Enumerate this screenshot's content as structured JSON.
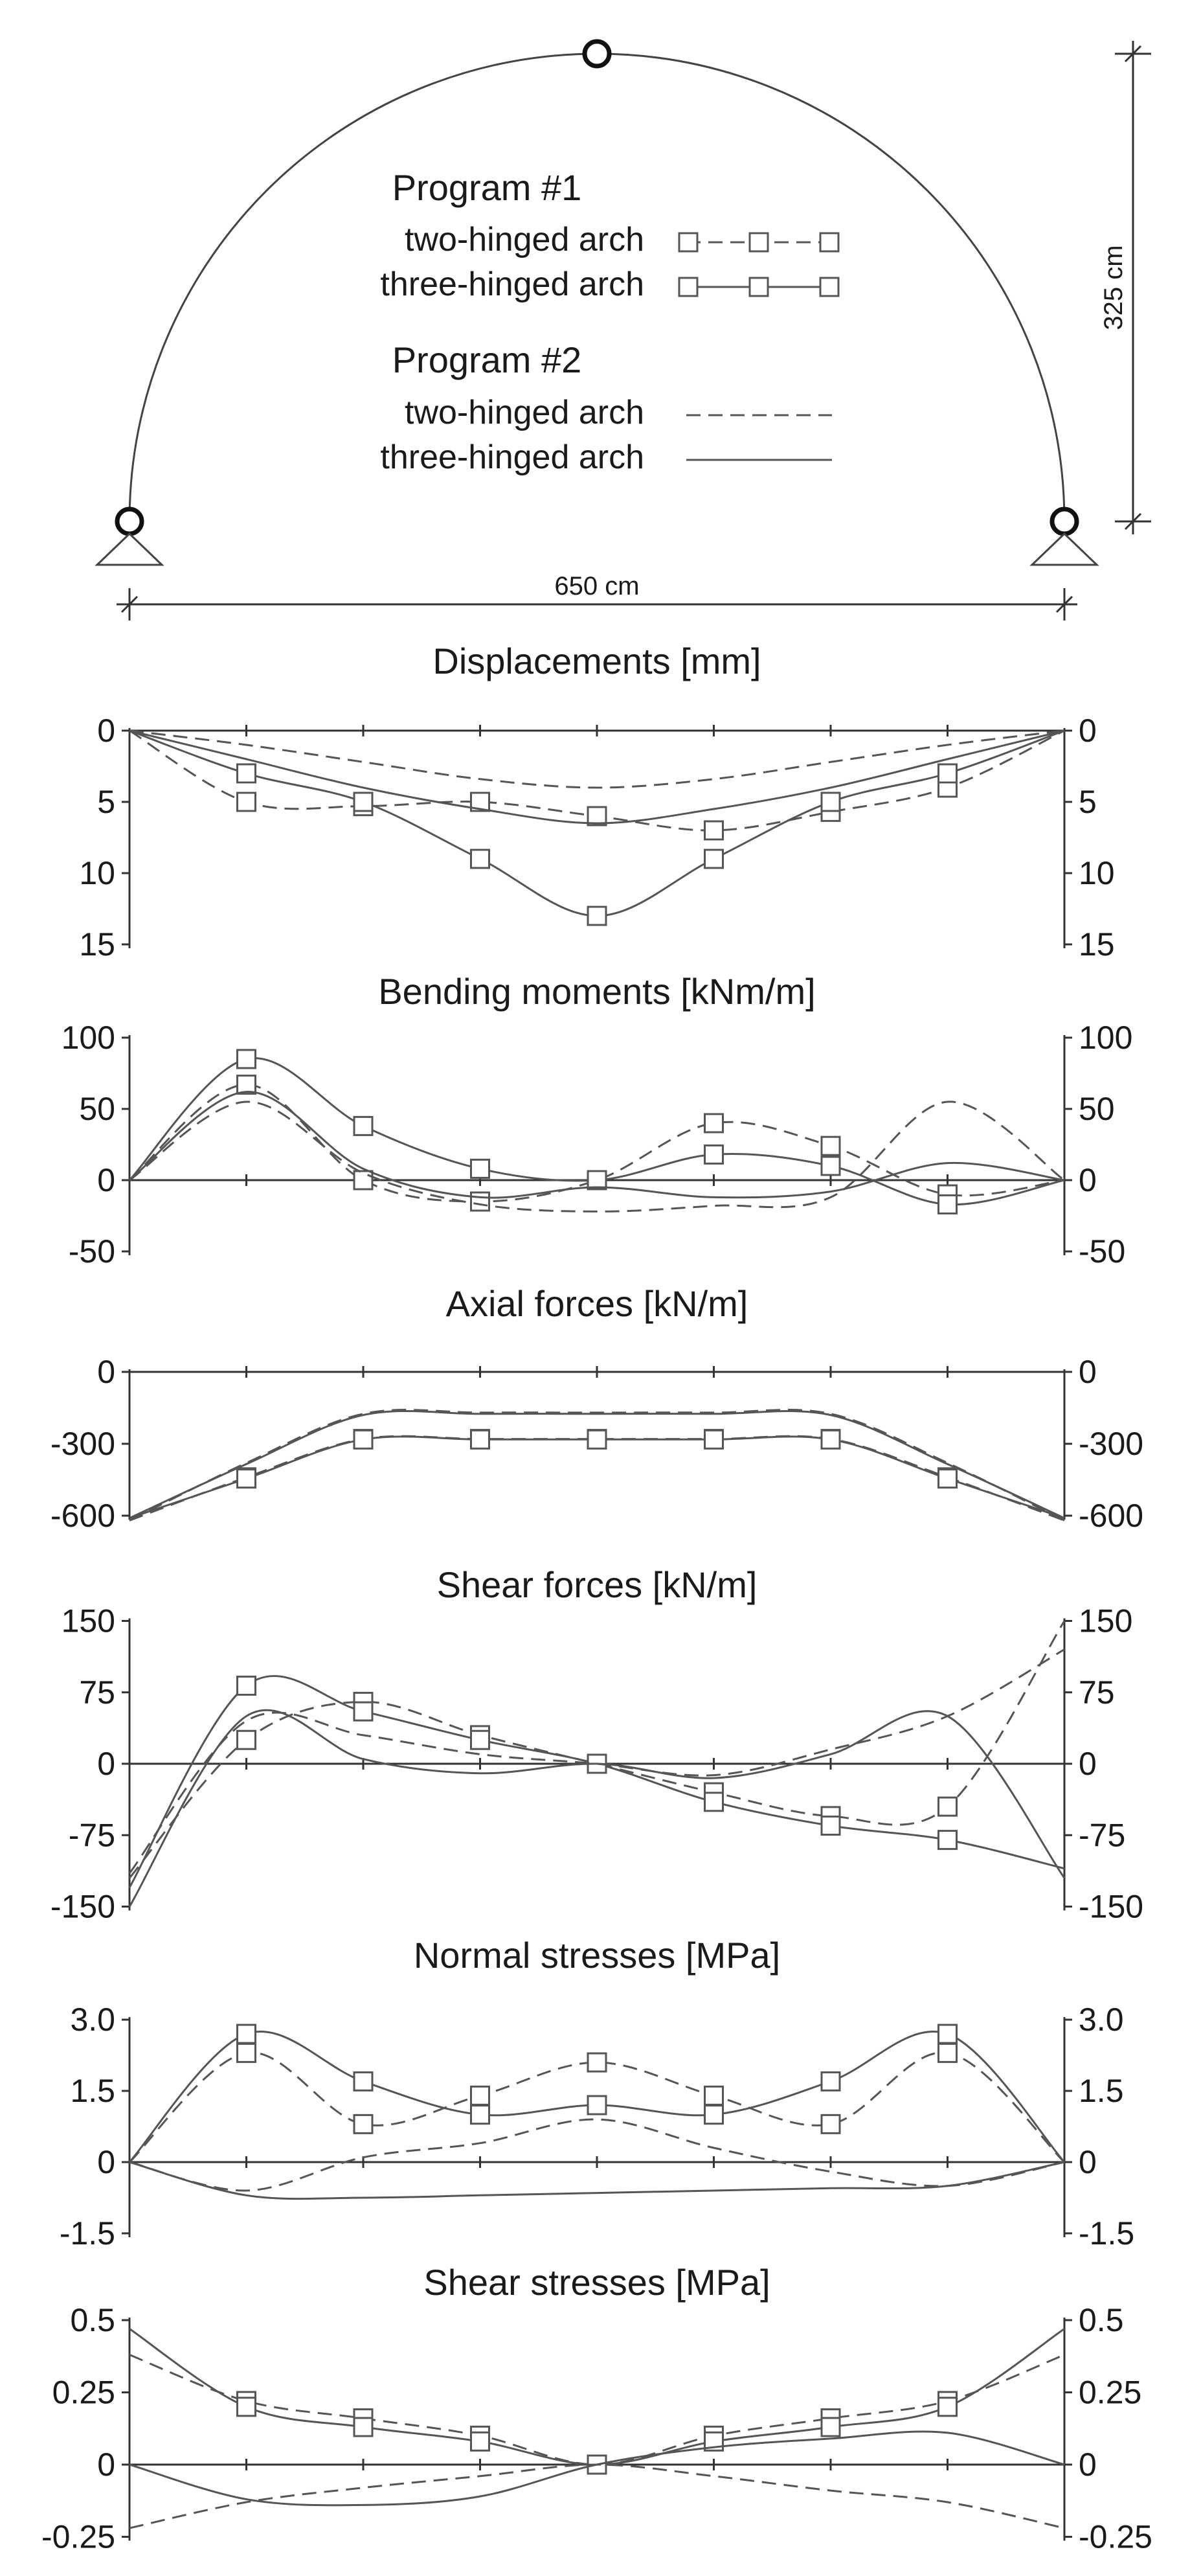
{
  "arch": {
    "span_label": "650 cm",
    "height_label": "325 cm"
  },
  "legend": {
    "program1": {
      "heading": "Program #1",
      "two": "two-hinged arch",
      "three": "three-hinged arch"
    },
    "program2": {
      "heading": "Program #2",
      "two": "two-hinged arch",
      "three": "three-hinged arch"
    }
  },
  "series_styles": {
    "p1_two": {
      "line": "dashed",
      "marker": "square"
    },
    "p1_three": {
      "line": "solid",
      "marker": "square"
    },
    "p2_two": {
      "line": "dashed",
      "marker": "none"
    },
    "p2_three": {
      "line": "solid",
      "marker": "none"
    }
  },
  "chart_data": [
    {
      "type": "line",
      "title": "Displacements [mm]",
      "ylim": [
        0,
        15
      ],
      "y_inverted": true,
      "yticks": [
        0,
        5,
        10,
        15
      ],
      "ytick_labels": [
        "0",
        "5",
        "10",
        "15"
      ],
      "x": [
        0,
        1,
        2,
        3,
        4,
        5,
        6,
        7,
        8
      ],
      "series": [
        {
          "key": "p1_two",
          "values": [
            0,
            5,
            5.3,
            5,
            6,
            7,
            5.7,
            4,
            0
          ]
        },
        {
          "key": "p1_three",
          "values": [
            0,
            3,
            5,
            9,
            13,
            9,
            5,
            3,
            0
          ]
        },
        {
          "key": "p2_two",
          "values": [
            0,
            1,
            2.2,
            3.4,
            4,
            3.4,
            2.2,
            1,
            0
          ]
        },
        {
          "key": "p2_three",
          "values": [
            0,
            2,
            4,
            5.5,
            6.5,
            5.5,
            4,
            2,
            0
          ]
        }
      ]
    },
    {
      "type": "line",
      "title": "Bending moments [kNm/m]",
      "ylim": [
        -50,
        100
      ],
      "y_inverted": false,
      "yticks": [
        100,
        50,
        0,
        -50
      ],
      "ytick_labels": [
        "100",
        "50",
        "0",
        "-50"
      ],
      "x": [
        0,
        1,
        2,
        3,
        4,
        5,
        6,
        7,
        8
      ],
      "series": [
        {
          "key": "p1_two",
          "values": [
            0,
            67,
            0,
            -15,
            0,
            40,
            24,
            -10,
            0
          ]
        },
        {
          "key": "p1_three",
          "values": [
            0,
            85,
            38,
            8,
            0,
            18,
            10,
            -17,
            0
          ]
        },
        {
          "key": "p2_two",
          "values": [
            0,
            55,
            5,
            -17,
            -22,
            -18,
            -12,
            55,
            0
          ]
        },
        {
          "key": "p2_three",
          "values": [
            0,
            62,
            8,
            -12,
            -5,
            -12,
            -8,
            12,
            0
          ]
        }
      ]
    },
    {
      "type": "line",
      "title": "Axial forces [kN/m]",
      "ylim": [
        -600,
        0
      ],
      "y_inverted": false,
      "yticks": [
        0,
        -300,
        -600
      ],
      "ytick_labels": [
        "0",
        "-300",
        "-600"
      ],
      "x": [
        0,
        1,
        2,
        3,
        4,
        5,
        6,
        7,
        8
      ],
      "series": [
        {
          "key": "p1_two",
          "values": [
            -620,
            -440,
            -280,
            -280,
            -280,
            -280,
            -280,
            -440,
            -620
          ]
        },
        {
          "key": "p1_three",
          "values": [
            -610,
            -445,
            -282,
            -282,
            -282,
            -282,
            -282,
            -445,
            -610
          ]
        },
        {
          "key": "p2_two",
          "values": [
            -620,
            -380,
            -175,
            -170,
            -170,
            -170,
            -175,
            -380,
            -620
          ]
        },
        {
          "key": "p2_three",
          "values": [
            -610,
            -385,
            -180,
            -175,
            -175,
            -175,
            -180,
            -385,
            -610
          ]
        }
      ]
    },
    {
      "type": "line",
      "title": "Shear forces [kN/m]",
      "ylim": [
        -150,
        150
      ],
      "y_inverted": false,
      "yticks": [
        150,
        75,
        0,
        -75,
        -150
      ],
      "ytick_labels": [
        "150",
        "75",
        "0",
        "-75",
        "-150"
      ],
      "x": [
        0,
        1,
        2,
        3,
        4,
        5,
        6,
        7,
        8
      ],
      "series": [
        {
          "key": "p1_two",
          "values": [
            -120,
            25,
            65,
            30,
            0,
            -30,
            -55,
            -45,
            150
          ]
        },
        {
          "key": "p1_three",
          "values": [
            -130,
            82,
            55,
            25,
            0,
            -40,
            -65,
            -80,
            -110
          ]
        },
        {
          "key": "p2_two",
          "values": [
            -115,
            45,
            30,
            10,
            0,
            -12,
            15,
            50,
            120
          ]
        },
        {
          "key": "p2_three",
          "values": [
            -150,
            50,
            5,
            -10,
            0,
            -15,
            10,
            50,
            -120
          ]
        }
      ]
    },
    {
      "type": "line",
      "title": "Normal stresses [MPa]",
      "ylim": [
        -1.5,
        3.0
      ],
      "y_inverted": false,
      "yticks": [
        3.0,
        1.5,
        0,
        -1.5
      ],
      "ytick_labels": [
        "3.0",
        "1.5",
        "0",
        "-1.5"
      ],
      "x": [
        0,
        1,
        2,
        3,
        4,
        5,
        6,
        7,
        8
      ],
      "series": [
        {
          "key": "p1_two",
          "values": [
            0,
            2.3,
            0.8,
            1.4,
            2.1,
            1.4,
            0.8,
            2.3,
            0
          ]
        },
        {
          "key": "p1_three",
          "values": [
            0,
            2.7,
            1.7,
            1.0,
            1.2,
            1.0,
            1.7,
            2.7,
            0
          ]
        },
        {
          "key": "p2_two",
          "values": [
            0,
            -0.6,
            0.1,
            0.4,
            0.9,
            0.3,
            -0.2,
            -0.5,
            0
          ]
        },
        {
          "key": "p2_three",
          "values": [
            0,
            -0.7,
            -0.75,
            -0.7,
            -0.65,
            -0.6,
            -0.55,
            -0.5,
            0
          ]
        }
      ]
    },
    {
      "type": "line",
      "title": "Shear stresses [MPa]",
      "ylim": [
        -0.25,
        0.5
      ],
      "y_inverted": false,
      "yticks": [
        0.5,
        0.25,
        0,
        -0.25
      ],
      "ytick_labels": [
        "0.5",
        "0.25",
        "0",
        "-0.25"
      ],
      "x": [
        0,
        1,
        2,
        3,
        4,
        5,
        6,
        7,
        8
      ],
      "series": [
        {
          "key": "p1_two",
          "values": [
            0.38,
            0.22,
            0.16,
            0.1,
            0,
            0.1,
            0.16,
            0.22,
            0.38
          ]
        },
        {
          "key": "p1_three",
          "values": [
            0.47,
            0.2,
            0.13,
            0.08,
            0,
            0.08,
            0.13,
            0.2,
            0.47
          ]
        },
        {
          "key": "p2_two",
          "values": [
            -0.22,
            -0.13,
            -0.08,
            -0.04,
            0,
            -0.04,
            -0.09,
            -0.13,
            -0.22
          ]
        },
        {
          "key": "p2_three",
          "values": [
            0,
            -0.12,
            -0.14,
            -0.11,
            0,
            0.06,
            0.09,
            0.11,
            0
          ]
        }
      ]
    }
  ]
}
